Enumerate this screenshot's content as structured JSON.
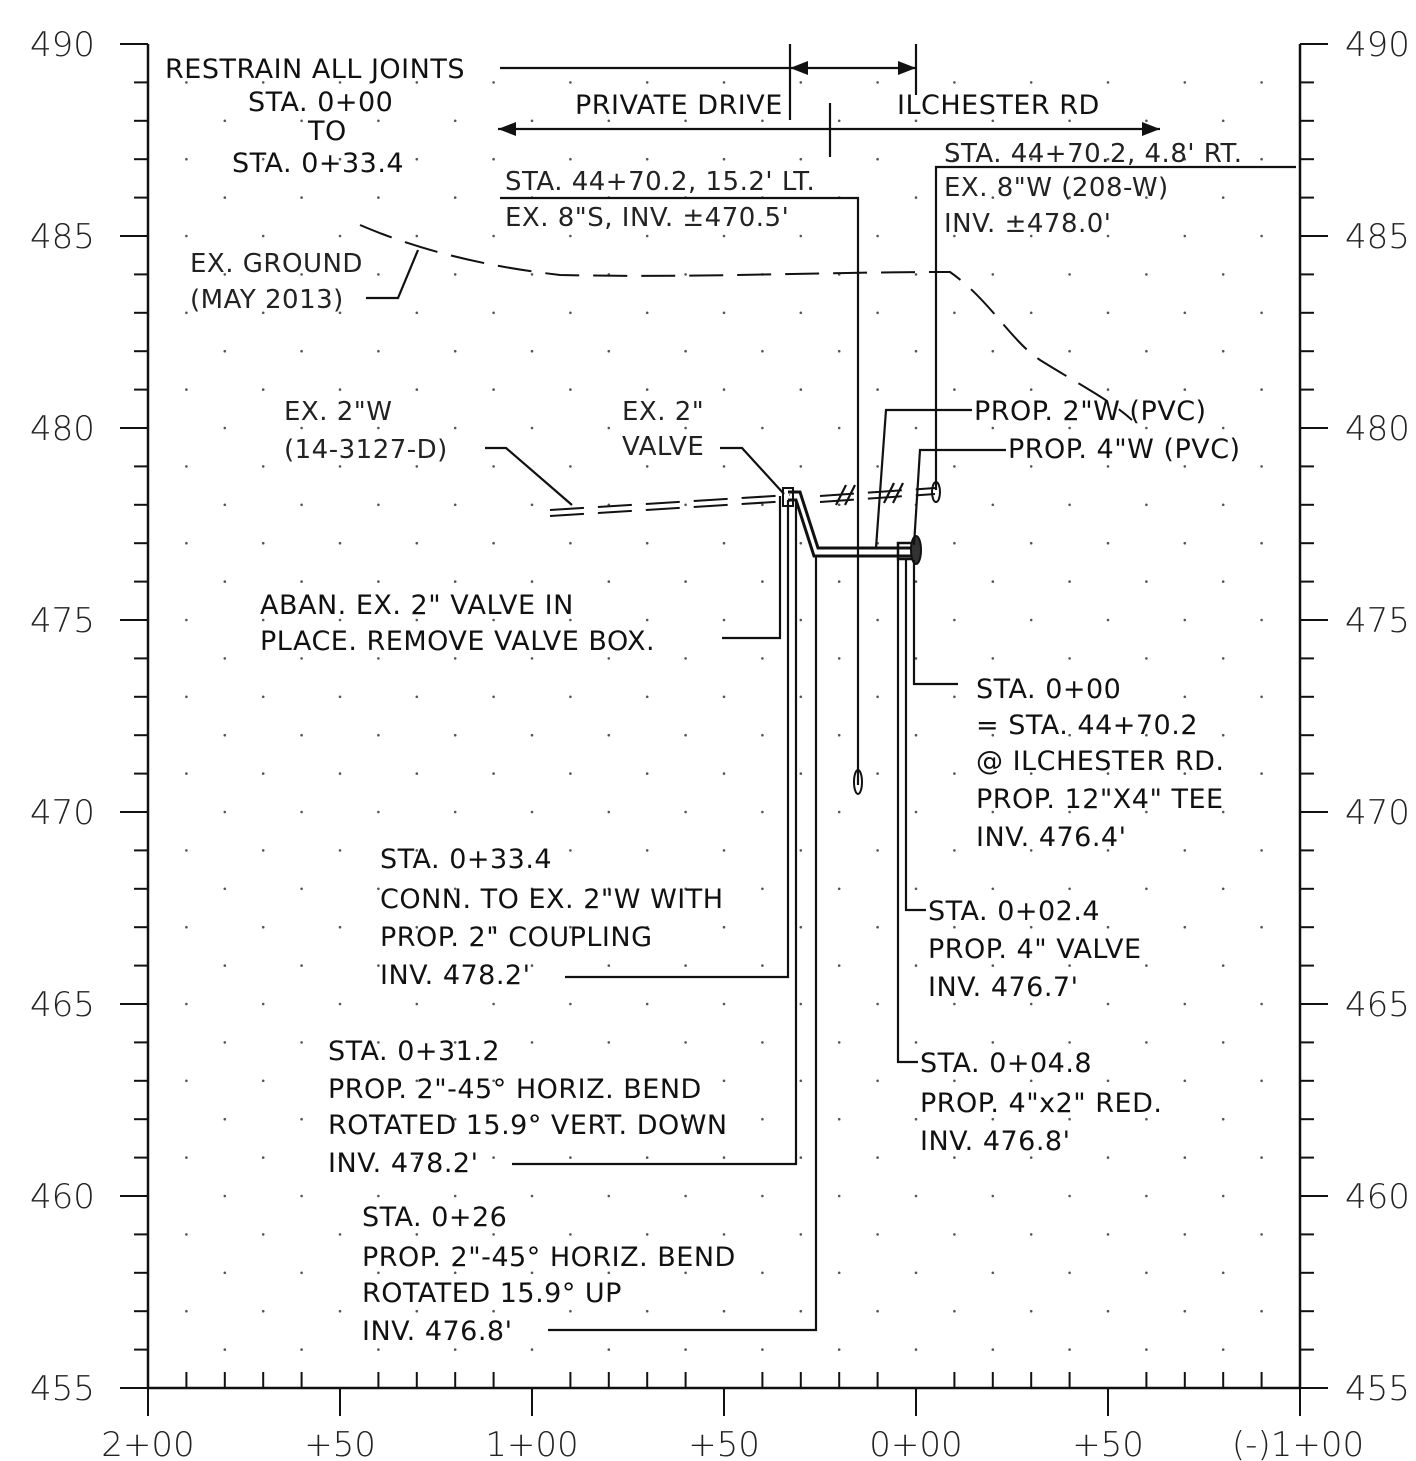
{
  "axes": {
    "y_left_labels": [
      "490",
      "485",
      "480",
      "475",
      "470",
      "465",
      "460",
      "455"
    ],
    "y_right_labels": [
      "490",
      "485",
      "480",
      "475",
      "470",
      "465",
      "460",
      "455"
    ],
    "x_labels": [
      "2+00",
      "+50",
      "1+00",
      "+50",
      "0+00",
      "+50",
      "(-)1+00"
    ]
  },
  "header": {
    "restrain": [
      "RESTRAIN ALL JOINTS",
      "STA. 0+00",
      "TO",
      "STA. 0+33.4"
    ],
    "private_drive": "PRIVATE DRIVE",
    "ilchester_rd": "ILCHESTER RD"
  },
  "callouts": {
    "sewer": [
      "STA. 44+70.2, 15.2' LT.",
      "EX. 8\"S, INV. ±470.5'"
    ],
    "ex_water": [
      "STA. 44+70.2, 4.8' RT.",
      "EX. 8\"W (208-W)",
      "INV. ±478.0'"
    ],
    "ground": [
      "EX. GROUND",
      "(MAY 2013)"
    ],
    "ex_2w": [
      "EX. 2\"W",
      "(14-3127-D)"
    ],
    "ex_valve": [
      "EX. 2\"",
      "VALVE"
    ],
    "prop_2w": "PROP. 2\"W (PVC)",
    "prop_4w": "PROP. 4\"W (PVC)",
    "aban_valve": [
      "ABAN. EX. 2\" VALVE IN",
      "PLACE. REMOVE VALVE BOX."
    ],
    "sta_000": [
      "STA. 0+00",
      "= STA. 44+70.2",
      "@ ILCHESTER RD.",
      "PROP. 12\"X4\" TEE",
      "INV. 476.4'"
    ],
    "sta_334": [
      "STA. 0+33.4",
      "CONN. TO EX. 2\"W WITH",
      "PROP. 2\" COUPLING",
      "INV. 478.2'"
    ],
    "sta_024": [
      "STA. 0+02.4",
      "PROP. 4\" VALVE",
      "INV. 476.7'"
    ],
    "sta_312": [
      "STA. 0+31.2",
      "PROP. 2\"-45° HORIZ. BEND",
      "ROTATED 15.9° VERT. DOWN",
      "INV. 478.2'"
    ],
    "sta_048": [
      "STA. 0+04.8",
      "PROP. 4\"x2\" RED.",
      "INV. 476.8'"
    ],
    "sta_026": [
      "STA. 0+26",
      "PROP. 2\"-45° HORIZ. BEND",
      "ROTATED 15.9° UP",
      "INV. 476.8'"
    ]
  }
}
